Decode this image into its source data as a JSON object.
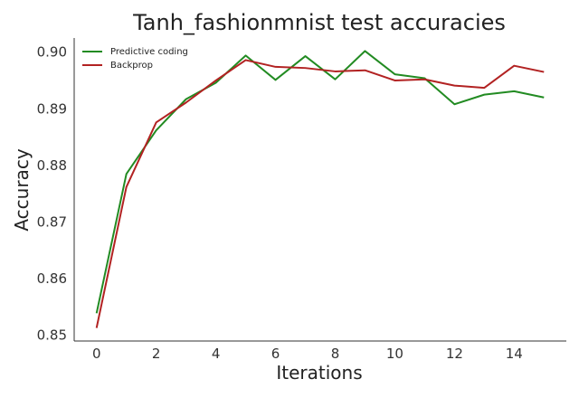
{
  "chart_data": {
    "type": "line",
    "title": "Tanh_fashionmnist test accuracies",
    "xlabel": "Iterations",
    "ylabel": "Accuracy",
    "xlim": [
      -0.75,
      15.75
    ],
    "ylim": [
      0.849,
      0.9025
    ],
    "xticks": [
      0,
      2,
      4,
      6,
      8,
      10,
      12,
      14
    ],
    "xtick_labels": [
      "0",
      "2",
      "4",
      "6",
      "8",
      "10",
      "12",
      "14"
    ],
    "yticks": [
      0.85,
      0.86,
      0.87,
      0.88,
      0.89,
      0.9
    ],
    "ytick_labels": [
      "0.85",
      "0.86",
      "0.87",
      "0.88",
      "0.89",
      "0.90"
    ],
    "grid": false,
    "legend_position": "top-left",
    "x": [
      0,
      1,
      2,
      3,
      4,
      5,
      6,
      7,
      8,
      9,
      10,
      11,
      12,
      13,
      14,
      15
    ],
    "series": [
      {
        "name": "Predictive coding",
        "color": "#228b22",
        "values": [
          0.8539,
          0.8785,
          0.8862,
          0.8917,
          0.8946,
          0.8994,
          0.8951,
          0.8993,
          0.8952,
          0.9002,
          0.8961,
          0.8954,
          0.8908,
          0.8925,
          0.8931,
          0.892
        ]
      },
      {
        "name": "Backprop",
        "color": "#b22222",
        "values": [
          0.8513,
          0.8762,
          0.8876,
          0.8911,
          0.895,
          0.8986,
          0.8974,
          0.8972,
          0.8966,
          0.8968,
          0.895,
          0.8952,
          0.8941,
          0.8937,
          0.8976,
          0.8965
        ]
      }
    ]
  }
}
